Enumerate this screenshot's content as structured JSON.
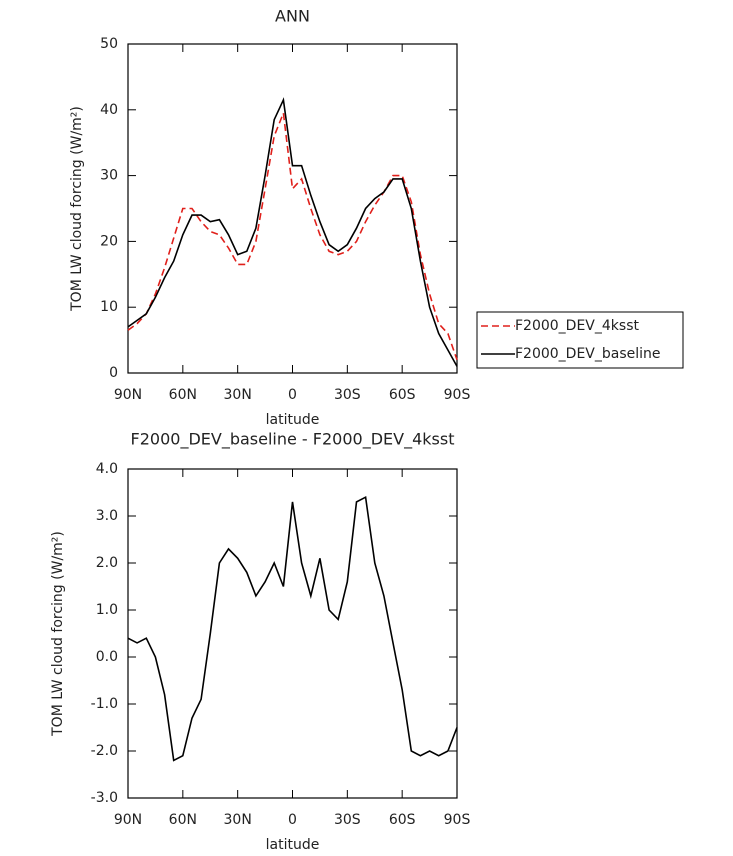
{
  "chart_data": [
    {
      "type": "line",
      "title": "ANN",
      "xlabel": "latitude",
      "ylabel": "TOM LW cloud forcing (W/m²)",
      "x": [
        90,
        85,
        80,
        75,
        70,
        65,
        60,
        55,
        50,
        45,
        40,
        35,
        30,
        25,
        20,
        15,
        10,
        5,
        0,
        -5,
        -10,
        -15,
        -20,
        -25,
        -30,
        -35,
        -40,
        -45,
        -50,
        -55,
        -60,
        -65,
        -70,
        -75,
        -80,
        -85,
        -90
      ],
      "xlim": [
        90,
        -90
      ],
      "xticks": [
        {
          "value": 90,
          "label": "90N"
        },
        {
          "value": 60,
          "label": "60N"
        },
        {
          "value": 30,
          "label": "30N"
        },
        0,
        {
          "value": -30,
          "label": "30S"
        },
        {
          "value": -60,
          "label": "60S"
        },
        {
          "value": -90,
          "label": "90S"
        }
      ],
      "ylim": [
        0,
        50
      ],
      "yticks": [
        0,
        10,
        20,
        30,
        40,
        50
      ],
      "legend": "outside-right",
      "series": [
        {
          "name": "F2000_DEV_4ksst",
          "color": "#e0201b",
          "dash": "dashed",
          "values": [
            6.5,
            7.5,
            9,
            12,
            16,
            20.5,
            25,
            25,
            23,
            21.5,
            21,
            19,
            16.5,
            16.5,
            20,
            28,
            36,
            39.5,
            28,
            29.5,
            25,
            21,
            18.5,
            18,
            18.5,
            20,
            23,
            25.5,
            27.5,
            30,
            30,
            26,
            18,
            12,
            7.5,
            6,
            2
          ]
        },
        {
          "name": "F2000_DEV_baseline",
          "color": "#000000",
          "dash": "solid",
          "values": [
            7,
            8,
            9,
            11.5,
            14.5,
            17,
            21,
            24,
            24,
            23,
            23.3,
            21,
            18,
            18.5,
            22,
            30,
            38.5,
            41.5,
            31.5,
            31.5,
            27,
            23,
            19.5,
            18.5,
            19.5,
            22,
            25,
            26.5,
            27.5,
            29.5,
            29.5,
            25,
            17,
            10,
            6,
            3.5,
            1
          ]
        }
      ]
    },
    {
      "type": "line",
      "title": "F2000_DEV_baseline - F2000_DEV_4ksst",
      "xlabel": "latitude",
      "ylabel": "TOM LW cloud forcing (W/m²)",
      "x": [
        90,
        85,
        80,
        75,
        70,
        65,
        60,
        55,
        50,
        45,
        40,
        35,
        30,
        25,
        20,
        15,
        10,
        5,
        0,
        -5,
        -10,
        -15,
        -20,
        -25,
        -30,
        -35,
        -40,
        -45,
        -50,
        -55,
        -60,
        -65,
        -70,
        -75,
        -80,
        -85,
        -90
      ],
      "xlim": [
        90,
        -90
      ],
      "xticks": [
        {
          "value": 90,
          "label": "90N"
        },
        {
          "value": 60,
          "label": "60N"
        },
        {
          "value": 30,
          "label": "30N"
        },
        0,
        {
          "value": -30,
          "label": "30S"
        },
        {
          "value": -60,
          "label": "60S"
        },
        {
          "value": -90,
          "label": "90S"
        }
      ],
      "ylim": [
        -3,
        4
      ],
      "yticks": [
        {
          "value": -3,
          "label": "-3.0"
        },
        {
          "value": -2,
          "label": "-2.0"
        },
        {
          "value": -1,
          "label": "-1.0"
        },
        {
          "value": 0,
          "label": "0.0"
        },
        {
          "value": 1,
          "label": "1.0"
        },
        {
          "value": 2,
          "label": "2.0"
        },
        {
          "value": 3,
          "label": "3.0"
        },
        {
          "value": 4,
          "label": "4.0"
        }
      ],
      "color": "#000000",
      "values": [
        0.4,
        0.3,
        0.4,
        0,
        -0.8,
        -2.2,
        -2.1,
        -1.3,
        -0.9,
        0.5,
        2,
        2.3,
        2.1,
        1.8,
        1.3,
        1.6,
        2,
        1.5,
        3.3,
        2,
        1.3,
        2.1,
        1,
        0.8,
        1.6,
        3.3,
        3.4,
        2,
        1.3,
        0.3,
        -0.7,
        -2,
        -2.1,
        -2,
        -2.1,
        -2,
        -1.5
      ]
    }
  ]
}
